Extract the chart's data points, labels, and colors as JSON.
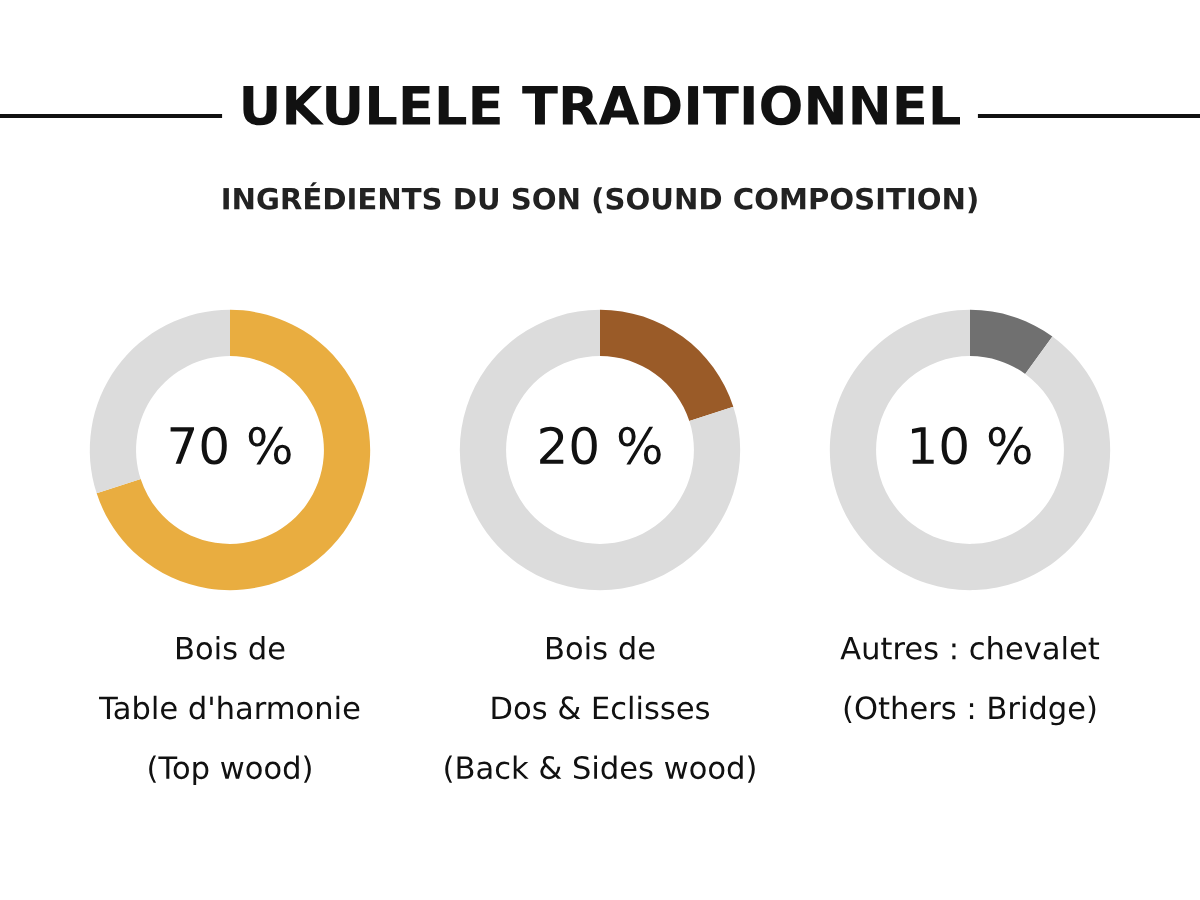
{
  "chart_data": [
    {
      "type": "donut",
      "title": "UKULELE TRADITIONNEL",
      "subtitle": "INGRÉDIENTS DU SON (SOUND COMPOSITION)",
      "xlabel": "Bois de\nTable d'harmonie\n(Top wood)",
      "categories": [
        null,
        null
      ],
      "values": [
        70,
        30
      ],
      "colors": [
        "#e9ad40",
        "#dcdcdc"
      ],
      "value_labels": [
        "70 %",
        null
      ]
    },
    {
      "type": "donut",
      "xlabel": "Bois de\nDos & Eclisses\n(Back & Sides wood)",
      "categories": [
        null,
        null
      ],
      "values": [
        20,
        80
      ],
      "colors": [
        "#9a5b28",
        "#dcdcdc"
      ],
      "value_labels": [
        "20 %",
        null
      ]
    },
    {
      "type": "donut",
      "xlabel": "Autres : chevalet\n(Others : Bridge)",
      "categories": [
        null,
        null
      ],
      "values": [
        10,
        90
      ],
      "colors": [
        "#707070",
        "#dcdcdc"
      ],
      "value_labels": [
        "10 %",
        null
      ]
    }
  ]
}
